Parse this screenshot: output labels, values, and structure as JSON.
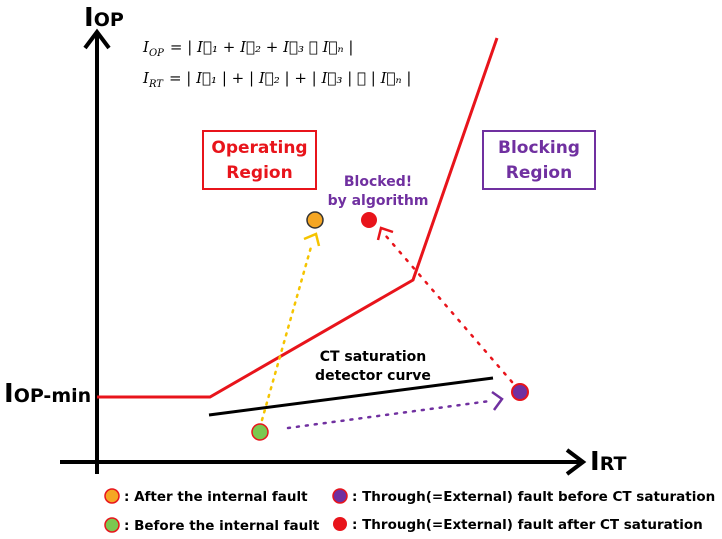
{
  "axes": {
    "y_label": "I",
    "y_sub": "OP",
    "x_label": "I",
    "x_sub": "RT",
    "y_min_label": "I",
    "y_min_sub": "OP-min"
  },
  "equations": {
    "op_lhs": "I",
    "op_lhs_sub": "OP",
    "op_rhs": "= | I⃗₁ + I⃗₂ + I⃗₃ ⋯ I⃗ₙ |",
    "rt_lhs": "I",
    "rt_lhs_sub": "RT",
    "rt_rhs": "= | I⃗₁ | + | I⃗₂ | + | I⃗₃ | ⋯ | I⃗ₙ |"
  },
  "regions": {
    "operating_line1": "Operating",
    "operating_line2": "Region",
    "blocking_line1": "Blocking",
    "blocking_line2": "Region"
  },
  "annotations": {
    "blocked_line1": "Blocked!",
    "blocked_line2": "by algorithm",
    "ct_line1": "CT saturation",
    "ct_line2": "detector curve"
  },
  "legend": {
    "after_internal": ": After the internal fault",
    "before_internal": ": Before the internal fault",
    "through_before": ": Through(=External) fault before CT saturation",
    "through_after": ": Through(=External) fault after CT saturation"
  },
  "colors": {
    "red": "#e8141b",
    "purple": "#7030a0",
    "orange": "#f5a623",
    "green": "#7bc850",
    "yellow_dotted": "#f5c400"
  }
}
